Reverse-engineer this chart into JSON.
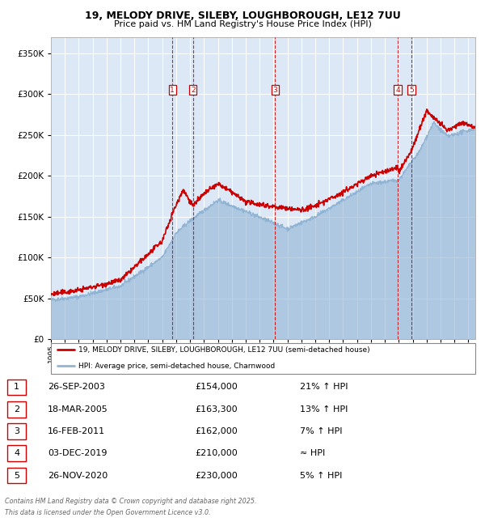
{
  "title_line1": "19, MELODY DRIVE, SILEBY, LOUGHBOROUGH, LE12 7UU",
  "title_line2": "Price paid vs. HM Land Registry's House Price Index (HPI)",
  "ylabel_ticks": [
    "£0",
    "£50K",
    "£100K",
    "£150K",
    "£200K",
    "£250K",
    "£300K",
    "£350K"
  ],
  "ytick_values": [
    0,
    50000,
    100000,
    150000,
    200000,
    250000,
    300000,
    350000
  ],
  "ylim": [
    0,
    370000
  ],
  "xlim_start": 1995.0,
  "xlim_end": 2025.5,
  "hpi_color": "#92b4d4",
  "price_color": "#cc0000",
  "bg_color": "#dce8f5",
  "grid_color": "#ffffff",
  "transactions": [
    {
      "num": 1,
      "date_x": 2003.73,
      "price": 154000
    },
    {
      "num": 2,
      "date_x": 2005.21,
      "price": 163300
    },
    {
      "num": 3,
      "date_x": 2011.12,
      "price": 162000
    },
    {
      "num": 4,
      "date_x": 2019.92,
      "price": 210000
    },
    {
      "num": 5,
      "date_x": 2020.9,
      "price": 230000
    }
  ],
  "legend_label1": "19, MELODY DRIVE, SILEBY, LOUGHBOROUGH, LE12 7UU (semi-detached house)",
  "legend_label2": "HPI: Average price, semi-detached house, Charnwood",
  "footer_line1": "Contains HM Land Registry data © Crown copyright and database right 2025.",
  "footer_line2": "This data is licensed under the Open Government Licence v3.0.",
  "table_rows": [
    [
      "1",
      "26-SEP-2003",
      "£154,000",
      "21% ↑ HPI"
    ],
    [
      "2",
      "18-MAR-2005",
      "£163,300",
      "13% ↑ HPI"
    ],
    [
      "3",
      "16-FEB-2011",
      "£162,000",
      "7% ↑ HPI"
    ],
    [
      "4",
      "03-DEC-2019",
      "£210,000",
      "≈ HPI"
    ],
    [
      "5",
      "26-NOV-2020",
      "£230,000",
      "5% ↑ HPI"
    ]
  ]
}
